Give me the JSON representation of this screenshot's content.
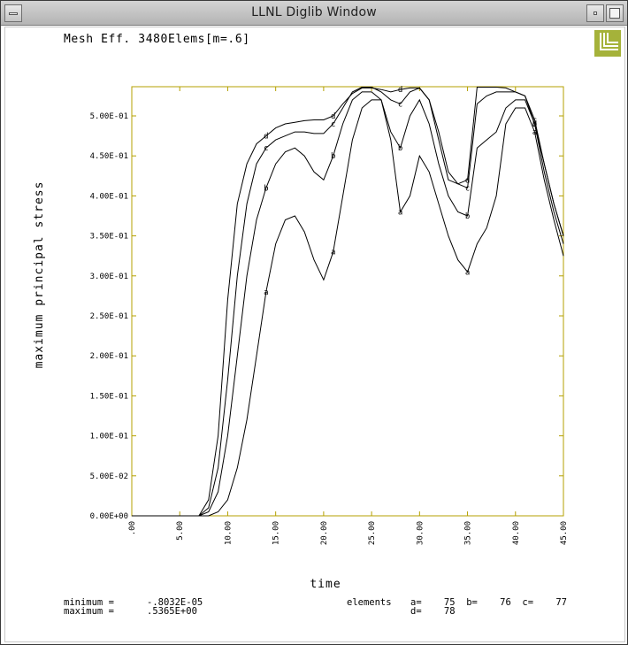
{
  "window": {
    "title": "LLNL Diglib Window"
  },
  "plot": {
    "title": "Mesh Eff. 3480Elems[m=.6]"
  },
  "footer": {
    "minimum_label": "minimum =",
    "minimum_value": "-.8032E-05",
    "maximum_label": "maximum =",
    "maximum_value": ".5365E+00",
    "elements_label": "elements",
    "elements_line1": "a=    75  b=    76  c=    77",
    "elements_line2": "d=    78"
  },
  "colors": {
    "axis_frame": "#b4a000",
    "logo": "#a5b23a",
    "curve": "#000000"
  },
  "icons": {
    "logo": "llnl-logo-icon"
  },
  "chart_data": {
    "type": "line",
    "xlabel": "time",
    "ylabel": "maximum principal stress",
    "xlim": [
      0,
      45
    ],
    "ylim": [
      0,
      0.5365
    ],
    "x_ticks": [
      ".00",
      "5.00",
      "10.00",
      "15.00",
      "20.00",
      "25.00",
      "30.00",
      "35.00",
      "40.00",
      "45.00"
    ],
    "y_ticks": [
      "0.00E+00",
      "5.00E-02",
      "1.00E-01",
      "1.50E-01",
      "2.00E-01",
      "2.50E-01",
      "3.00E-01",
      "3.50E-01",
      "4.00E-01",
      "4.50E-01",
      "5.00E-01"
    ],
    "series": [
      {
        "name": "a",
        "x": [
          0,
          7,
          8,
          9,
          10,
          11,
          12,
          13,
          14,
          15,
          16,
          17,
          18,
          19,
          20,
          21,
          22,
          23,
          24,
          25,
          26,
          27,
          28,
          29,
          30,
          31,
          32,
          33,
          34,
          35,
          36,
          37,
          38,
          39,
          40,
          41,
          42,
          43,
          44,
          45
        ],
        "y": [
          0,
          0,
          0,
          0.005,
          0.02,
          0.06,
          0.12,
          0.2,
          0.28,
          0.34,
          0.37,
          0.375,
          0.355,
          0.32,
          0.295,
          0.33,
          0.4,
          0.47,
          0.51,
          0.52,
          0.52,
          0.47,
          0.38,
          0.4,
          0.45,
          0.43,
          0.39,
          0.35,
          0.32,
          0.305,
          0.34,
          0.36,
          0.4,
          0.49,
          0.51,
          0.51,
          0.48,
          0.42,
          0.37,
          0.325
        ]
      },
      {
        "name": "b",
        "x": [
          0,
          7,
          8,
          9,
          10,
          11,
          12,
          13,
          14,
          15,
          16,
          17,
          18,
          19,
          20,
          21,
          22,
          23,
          24,
          25,
          26,
          27,
          28,
          29,
          30,
          31,
          32,
          33,
          34,
          35,
          36,
          37,
          38,
          39,
          40,
          41,
          42,
          43,
          44,
          45
        ],
        "y": [
          0,
          0,
          0.005,
          0.03,
          0.1,
          0.2,
          0.3,
          0.37,
          0.41,
          0.44,
          0.455,
          0.46,
          0.45,
          0.43,
          0.42,
          0.45,
          0.49,
          0.52,
          0.53,
          0.53,
          0.52,
          0.48,
          0.46,
          0.5,
          0.52,
          0.49,
          0.44,
          0.4,
          0.38,
          0.375,
          0.46,
          0.47,
          0.48,
          0.51,
          0.52,
          0.52,
          0.49,
          0.43,
          0.38,
          0.34
        ]
      },
      {
        "name": "c",
        "x": [
          0,
          7,
          8,
          9,
          10,
          11,
          12,
          13,
          14,
          15,
          16,
          17,
          18,
          19,
          20,
          21,
          22,
          23,
          24,
          25,
          26,
          27,
          28,
          29,
          30,
          31,
          32,
          33,
          34,
          35,
          36,
          37,
          38,
          39,
          40,
          41,
          42,
          43,
          44,
          45
        ],
        "y": [
          0,
          0,
          0.01,
          0.06,
          0.17,
          0.3,
          0.39,
          0.44,
          0.46,
          0.47,
          0.475,
          0.48,
          0.48,
          0.478,
          0.478,
          0.49,
          0.51,
          0.53,
          0.536,
          0.536,
          0.53,
          0.52,
          0.515,
          0.53,
          0.535,
          0.52,
          0.47,
          0.42,
          0.415,
          0.41,
          0.515,
          0.525,
          0.53,
          0.53,
          0.53,
          0.525,
          0.495,
          0.44,
          0.39,
          0.35
        ]
      },
      {
        "name": "d",
        "x": [
          0,
          7,
          8,
          9,
          10,
          11,
          12,
          13,
          14,
          15,
          16,
          17,
          18,
          19,
          20,
          21,
          22,
          23,
          24,
          25,
          26,
          27,
          28,
          29,
          30,
          31,
          32,
          33,
          34,
          35,
          36,
          37,
          38,
          39,
          40,
          41,
          42,
          43,
          44,
          45
        ],
        "y": [
          0,
          0,
          0.02,
          0.1,
          0.27,
          0.39,
          0.44,
          0.465,
          0.475,
          0.485,
          0.49,
          0.492,
          0.494,
          0.495,
          0.495,
          0.5,
          0.515,
          0.528,
          0.535,
          0.535,
          0.533,
          0.53,
          0.533,
          0.535,
          0.535,
          0.52,
          0.48,
          0.43,
          0.415,
          0.42,
          0.536,
          0.536,
          0.536,
          0.535,
          0.53,
          0.525,
          0.49,
          0.44,
          0.39,
          0.35
        ]
      }
    ],
    "grid": false,
    "legend": "none"
  }
}
